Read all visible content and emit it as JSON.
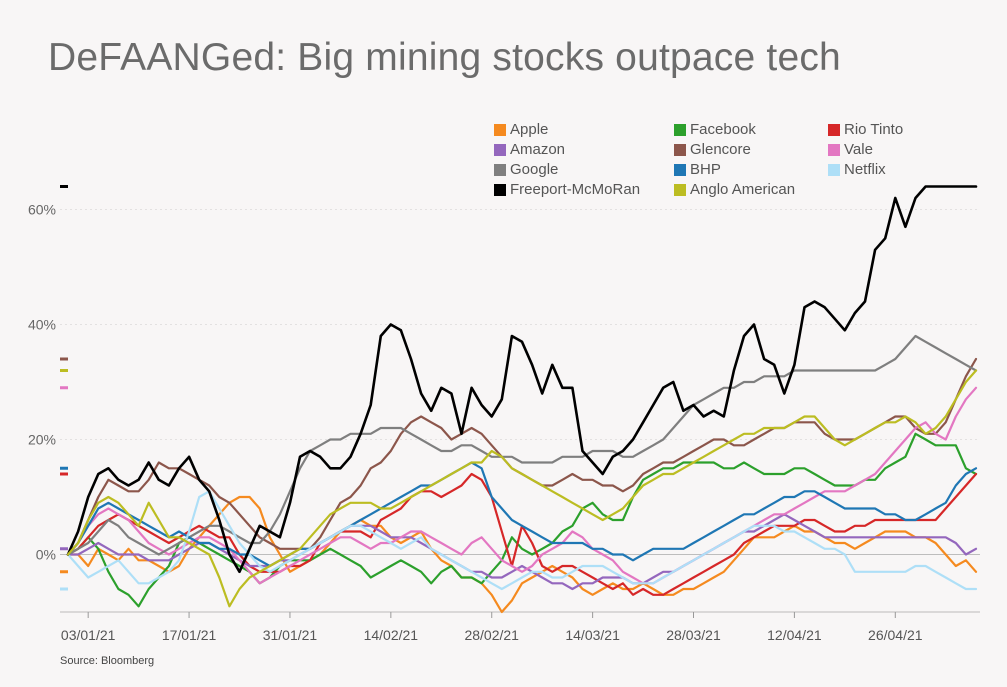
{
  "title": "DeFAANGed: Big mining stocks outpace tech",
  "source": "Source: Bloomberg",
  "chart_data": {
    "type": "line",
    "title": "DeFAANGed: Big mining stocks outpace tech",
    "xlabel": "",
    "ylabel": "",
    "ylim": [
      -10,
      66
    ],
    "grid": true,
    "legend_position": "top-right",
    "yticks": [
      0,
      20,
      40,
      60
    ],
    "ytick_labels": [
      "0%",
      "20%",
      "40%",
      "60%"
    ],
    "x_tick_labels": [
      "03/01/21",
      "17/01/21",
      "31/01/21",
      "14/02/21",
      "28/02/21",
      "14/03/21",
      "28/03/21",
      "12/04/21",
      "26/04/21"
    ],
    "x_tick_index": [
      2,
      12,
      22,
      32,
      42,
      52,
      62,
      72,
      82
    ],
    "x_count": 91,
    "series": [
      {
        "name": "Apple",
        "color": "#f58a1f",
        "values": [
          0,
          0,
          -2,
          1,
          0,
          -1,
          1,
          -1,
          -1,
          -2,
          -3,
          -2,
          1,
          3,
          5,
          7,
          9,
          10,
          10,
          8,
          3,
          0,
          -3,
          -2,
          -1,
          0,
          2,
          4,
          5,
          6,
          5,
          5,
          3,
          2,
          3,
          4,
          1,
          -1,
          -2,
          -4,
          -4,
          -5,
          -7,
          -10,
          -8,
          -5,
          -4,
          -3,
          -2,
          -3,
          -4,
          -6,
          -7,
          -6,
          -5,
          -6,
          -6,
          -5,
          -6,
          -7,
          -7,
          -6,
          -6,
          -5,
          -4,
          -3,
          -1,
          1,
          3,
          3,
          3,
          4,
          5,
          4,
          4,
          3,
          2,
          2,
          1,
          2,
          3,
          4,
          4,
          4,
          3,
          3,
          2,
          0,
          -2,
          -1,
          -3
        ]
      },
      {
        "name": "Facebook",
        "color": "#2ca02c",
        "values": [
          0,
          1,
          3,
          1,
          -3,
          -6,
          -7,
          -9,
          -6,
          -4,
          -2,
          2,
          3,
          2,
          1,
          0,
          -1,
          -2,
          -3,
          -5,
          -4,
          -2,
          -1,
          -1,
          -1,
          0,
          1,
          0,
          -1,
          -2,
          -4,
          -3,
          -2,
          -1,
          -2,
          -3,
          -5,
          -3,
          -2,
          -4,
          -4,
          -5,
          -3,
          -1,
          3,
          1,
          0,
          1,
          2,
          4,
          5,
          8,
          9,
          7,
          6,
          6,
          10,
          13,
          14,
          15,
          15,
          16,
          16,
          16,
          16,
          15,
          15,
          16,
          15,
          14,
          14,
          14,
          15,
          15,
          14,
          13,
          12,
          12,
          12,
          13,
          13,
          15,
          16,
          17,
          21,
          20,
          19,
          19,
          19,
          15,
          14
        ]
      },
      {
        "name": "Rio Tinto",
        "color": "#d62728",
        "values": [
          0,
          1,
          3,
          5,
          6,
          7,
          6,
          5,
          4,
          3,
          2,
          3,
          4,
          5,
          4,
          3,
          3,
          0,
          -2,
          -3,
          -3,
          -3,
          -2,
          -2,
          -1,
          2,
          3,
          4,
          4,
          4,
          3,
          6,
          7,
          8,
          10,
          11,
          11,
          10,
          11,
          12,
          14,
          13,
          10,
          4,
          -2,
          5,
          2,
          -2,
          -3,
          -2,
          -2,
          -3,
          -4,
          -5,
          -6,
          -5,
          -7,
          -6,
          -7,
          -7,
          -6,
          -5,
          -4,
          -3,
          -2,
          -1,
          0,
          2,
          3,
          4,
          5,
          5,
          5,
          6,
          6,
          5,
          4,
          4,
          5,
          5,
          6,
          6,
          6,
          6,
          6,
          6,
          6,
          8,
          10,
          12,
          14
        ]
      },
      {
        "name": "Amazon",
        "color": "#9467bd",
        "values": [
          0,
          0,
          1,
          2,
          1,
          0,
          0,
          0,
          -1,
          -1,
          -1,
          0,
          1,
          2,
          2,
          1,
          0,
          -1,
          -2,
          -2,
          -2,
          -1,
          -1,
          0,
          1,
          2,
          3,
          4,
          5,
          5,
          5,
          4,
          3,
          3,
          3,
          2,
          1,
          0,
          -1,
          -2,
          -3,
          -3,
          -4,
          -4,
          -3,
          -2,
          -3,
          -4,
          -5,
          -5,
          -6,
          -5,
          -5,
          -4,
          -4,
          -4,
          -5,
          -5,
          -4,
          -3,
          -3,
          -2,
          -1,
          0,
          1,
          2,
          3,
          4,
          4,
          5,
          6,
          7,
          6,
          5,
          4,
          3,
          3,
          3,
          3,
          3,
          3,
          3,
          3,
          3,
          3,
          3,
          3,
          3,
          2,
          0,
          1
        ]
      },
      {
        "name": "Glencore",
        "color": "#8c564b",
        "values": [
          0,
          2,
          6,
          10,
          13,
          12,
          11,
          11,
          13,
          16,
          15,
          15,
          14,
          13,
          12,
          10,
          9,
          7,
          5,
          3,
          2,
          1,
          1,
          1,
          1,
          3,
          6,
          9,
          10,
          12,
          15,
          16,
          18,
          21,
          23,
          24,
          23,
          22,
          20,
          21,
          22,
          21,
          19,
          17,
          15,
          14,
          13,
          12,
          12,
          13,
          14,
          13,
          13,
          12,
          12,
          11,
          12,
          14,
          15,
          16,
          16,
          17,
          18,
          19,
          20,
          20,
          19,
          19,
          20,
          21,
          22,
          22,
          23,
          23,
          23,
          21,
          20,
          20,
          20,
          21,
          22,
          23,
          24,
          24,
          22,
          21,
          21,
          23,
          27,
          31,
          34
        ]
      },
      {
        "name": "Vale",
        "color": "#e377c2",
        "values": [
          0,
          2,
          5,
          7,
          8,
          7,
          6,
          4,
          2,
          1,
          0,
          1,
          2,
          3,
          3,
          2,
          1,
          -1,
          -3,
          -5,
          -4,
          -3,
          -2,
          -1,
          0,
          1,
          2,
          3,
          3,
          2,
          1,
          2,
          2,
          3,
          4,
          4,
          3,
          2,
          1,
          0,
          2,
          3,
          1,
          -1,
          -2,
          -3,
          -2,
          0,
          1,
          2,
          4,
          3,
          1,
          0,
          -1,
          -3,
          -4,
          -5,
          -5,
          -4,
          -3,
          -2,
          -1,
          0,
          1,
          2,
          3,
          4,
          5,
          6,
          7,
          7,
          8,
          9,
          10,
          11,
          11,
          11,
          12,
          13,
          14,
          16,
          18,
          20,
          22,
          23,
          21,
          20,
          24,
          27,
          29
        ]
      },
      {
        "name": "Google",
        "color": "#7f7f7f",
        "values": [
          0,
          1,
          2,
          4,
          6,
          5,
          3,
          2,
          1,
          0,
          1,
          2,
          3,
          4,
          5,
          5,
          4,
          3,
          2,
          2,
          4,
          7,
          11,
          15,
          18,
          19,
          20,
          20,
          21,
          21,
          21,
          22,
          22,
          22,
          21,
          20,
          19,
          18,
          18,
          19,
          19,
          18,
          17,
          17,
          17,
          16,
          16,
          16,
          16,
          17,
          17,
          17,
          18,
          18,
          18,
          17,
          17,
          18,
          19,
          20,
          22,
          24,
          26,
          27,
          28,
          29,
          29,
          30,
          30,
          31,
          31,
          31,
          32,
          32,
          32,
          32,
          32,
          32,
          32,
          32,
          32,
          33,
          34,
          36,
          38,
          37,
          36,
          35,
          34,
          33,
          32
        ]
      },
      {
        "name": "BHP",
        "color": "#1f77b4",
        "values": [
          0,
          2,
          5,
          8,
          9,
          8,
          7,
          6,
          5,
          4,
          3,
          4,
          3,
          2,
          2,
          1,
          1,
          0,
          0,
          -1,
          -2,
          -1,
          0,
          1,
          1,
          2,
          3,
          4,
          5,
          6,
          7,
          8,
          9,
          10,
          11,
          12,
          12,
          13,
          14,
          15,
          16,
          15,
          10,
          8,
          6,
          5,
          4,
          3,
          2,
          2,
          2,
          2,
          1,
          1,
          0,
          0,
          -1,
          0,
          1,
          1,
          1,
          1,
          2,
          3,
          4,
          5,
          6,
          7,
          7,
          8,
          9,
          10,
          10,
          11,
          11,
          10,
          9,
          8,
          8,
          8,
          8,
          7,
          7,
          6,
          6,
          7,
          8,
          9,
          12,
          14,
          15
        ]
      },
      {
        "name": "Netflix",
        "color": "#aedff7",
        "values": [
          0,
          -2,
          -4,
          -3,
          -2,
          -1,
          -3,
          -5,
          -5,
          -4,
          -3,
          -1,
          4,
          10,
          11,
          8,
          5,
          2,
          0,
          -2,
          -3,
          -2,
          -1,
          0,
          1,
          2,
          3,
          4,
          5,
          5,
          4,
          3,
          2,
          1,
          2,
          3,
          1,
          0,
          -1,
          -2,
          -3,
          -4,
          -5,
          -6,
          -5,
          -4,
          -3,
          -3,
          -4,
          -4,
          -3,
          -2,
          -2,
          -2,
          -3,
          -4,
          -5,
          -5,
          -5,
          -4,
          -3,
          -2,
          -1,
          0,
          1,
          2,
          3,
          4,
          5,
          5,
          5,
          4,
          4,
          3,
          2,
          1,
          1,
          0,
          -3,
          -3,
          -3,
          -3,
          -3,
          -3,
          -2,
          -2,
          -3,
          -4,
          -5,
          -6,
          -6
        ]
      },
      {
        "name": "Freeport-McMoRan",
        "color": "#000000",
        "values": [
          0,
          4,
          10,
          14,
          15,
          13,
          12,
          13,
          16,
          13,
          12,
          15,
          17,
          13,
          11,
          6,
          0,
          -3,
          1,
          5,
          4,
          3,
          9,
          17,
          18,
          17,
          15,
          15,
          17,
          21,
          26,
          38,
          40,
          39,
          34,
          28,
          25,
          29,
          28,
          21,
          29,
          26,
          24,
          27,
          38,
          37,
          33,
          28,
          33,
          29,
          29,
          18,
          16,
          14,
          17,
          18,
          20,
          23,
          26,
          29,
          30,
          25,
          26,
          24,
          25,
          24,
          32,
          38,
          40,
          34,
          33,
          28,
          33,
          43,
          44,
          43,
          41,
          39,
          42,
          44,
          53,
          55,
          62,
          57,
          62,
          64,
          64,
          64,
          64,
          64,
          64
        ]
      },
      {
        "name": "Anglo American",
        "color": "#bcbd22",
        "values": [
          0,
          2,
          6,
          9,
          10,
          9,
          7,
          5,
          9,
          6,
          3,
          3,
          2,
          1,
          0,
          -4,
          -9,
          -6,
          -4,
          -3,
          -2,
          -1,
          0,
          1,
          3,
          5,
          7,
          8,
          9,
          9,
          9,
          8,
          8,
          9,
          10,
          11,
          12,
          13,
          14,
          15,
          16,
          16,
          18,
          17,
          15,
          14,
          13,
          12,
          11,
          10,
          9,
          8,
          7,
          6,
          7,
          8,
          10,
          12,
          13,
          14,
          14,
          15,
          16,
          17,
          18,
          19,
          20,
          21,
          21,
          22,
          22,
          22,
          23,
          24,
          24,
          22,
          20,
          19,
          20,
          21,
          22,
          23,
          23,
          24,
          23,
          21,
          22,
          24,
          27,
          30,
          32
        ]
      }
    ]
  }
}
